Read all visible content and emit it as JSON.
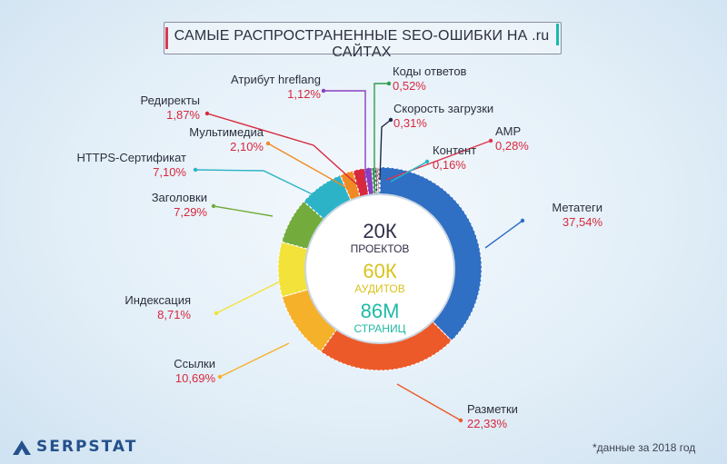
{
  "title": "САМЫЕ РАСПРОСТРАНЕННЫЕ SEO-ОШИБКИ НА .ru САЙТАХ",
  "brand": "SERPSTAT",
  "footnote": "*данные за 2018 год",
  "center": [
    {
      "value": "20К",
      "label": "ПРОЕКТОВ",
      "color": "#2f2f48"
    },
    {
      "value": "60К",
      "label": "АУДИТОВ",
      "color": "#d9c21e"
    },
    {
      "value": "86М",
      "label": "СТРАНИЦ",
      "color": "#1fb9a6"
    }
  ],
  "chart_data": {
    "type": "pie",
    "style": "donut",
    "title": "САМЫЕ РАСПРОСТРАНЕННЫЕ SEO-ОШИБКИ НА .ru САЙТАХ",
    "slices": [
      {
        "label": "Метатеги",
        "value_text": "37,54%",
        "value": 37.54,
        "color": "#2f6fc4"
      },
      {
        "label": "Разметки",
        "value_text": "22,33%",
        "value": 22.33,
        "color": "#ec5a2a"
      },
      {
        "label": "Ссылки",
        "value_text": "10,69%",
        "value": 10.69,
        "color": "#f6b12b"
      },
      {
        "label": "Индексация",
        "value_text": "8,71%",
        "value": 8.71,
        "color": "#f2e23a"
      },
      {
        "label": "Заголовки",
        "value_text": "7,29%",
        "value": 7.29,
        "color": "#73ac3c"
      },
      {
        "label": "HTTPS-Сертификат",
        "value_text": "7,10%",
        "value": 7.1,
        "color": "#2db3c7"
      },
      {
        "label": "Мультимедиа",
        "value_text": "2,10%",
        "value": 2.1,
        "color": "#f08a24"
      },
      {
        "label": "Редиректы",
        "value_text": "1,87%",
        "value": 1.87,
        "color": "#d8283e"
      },
      {
        "label": "Атрибут hreflang",
        "value_text": "1,12%",
        "value": 1.12,
        "color": "#8b3fbf"
      },
      {
        "label": "Коды ответов",
        "value_text": "0,52%",
        "value": 0.52,
        "color": "#2d9c4e"
      },
      {
        "label": "Скорость загрузки",
        "value_text": "0,31%",
        "value": 0.31,
        "color": "#1f2a44"
      },
      {
        "label": "AMP",
        "value_text": "0,28%",
        "value": 0.28,
        "color": "#e0344e"
      },
      {
        "label": "Контент",
        "value_text": "0,16%",
        "value": 0.16,
        "color": "#22b8c8"
      }
    ]
  }
}
